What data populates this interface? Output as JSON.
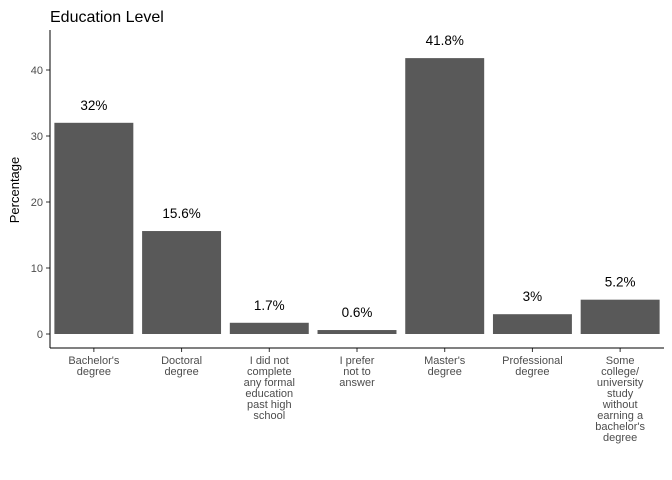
{
  "chart_data": {
    "type": "bar",
    "title": "Education Level",
    "xlabel": "",
    "ylabel": "Percentage",
    "ylim": [
      0,
      44
    ],
    "yticks": [
      0,
      10,
      20,
      30,
      40
    ],
    "grid": false,
    "bar_color": "#595959",
    "categories": [
      "Bachelor's degree",
      "Doctoral degree",
      "I did not complete any formal education past high school",
      "I prefer not to answer",
      "Master's degree",
      "Professional degree",
      "Some college/ university study without earning a bachelor's degree"
    ],
    "category_lines": [
      [
        "Bachelor's",
        "degree"
      ],
      [
        "Doctoral",
        "degree"
      ],
      [
        "I did not",
        "complete",
        "any formal",
        "education",
        "past high",
        "school"
      ],
      [
        "I prefer",
        "not to",
        "answer"
      ],
      [
        "Master's",
        "degree"
      ],
      [
        "Professional",
        "degree"
      ],
      [
        "Some",
        "college/",
        "university",
        "study",
        "without",
        "earning a",
        "bachelor's",
        "degree"
      ]
    ],
    "values": [
      32,
      15.6,
      1.7,
      0.6,
      41.8,
      3,
      5.2
    ],
    "data_labels": [
      "32%",
      "15.6%",
      "1.7%",
      "0.6%",
      "41.8%",
      "3%",
      "5.2%"
    ]
  }
}
